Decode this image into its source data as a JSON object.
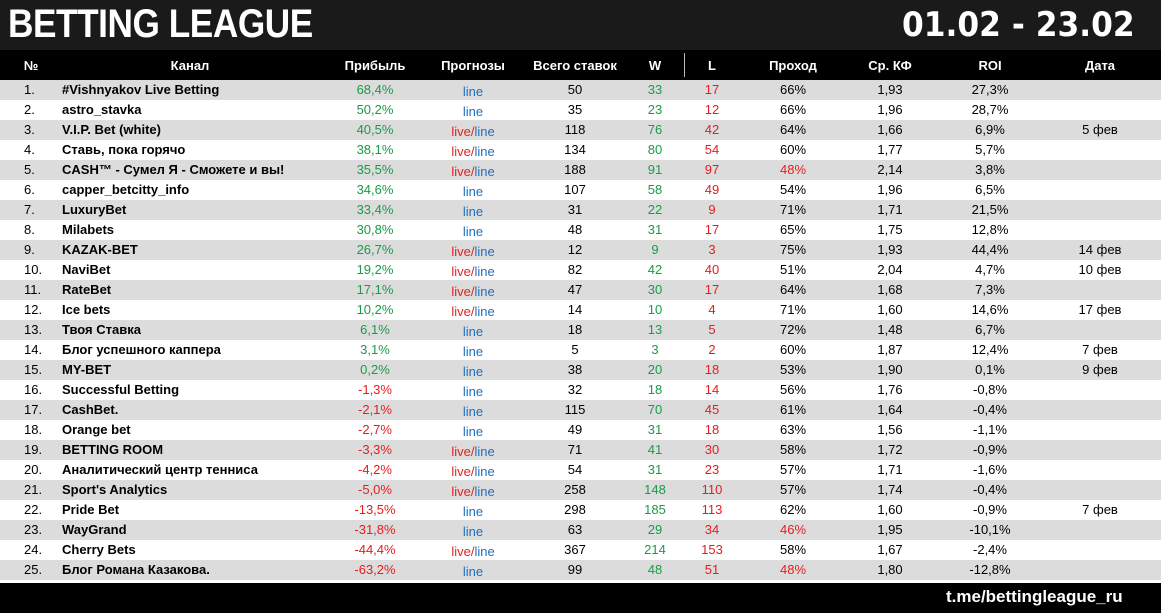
{
  "header": {
    "title": "BETTING LEAGUE",
    "dates": "01.02 - 23.02"
  },
  "columns": [
    "№",
    "Канал",
    "Прибыль",
    "Прогнозы",
    "Всего ставок",
    "W",
    "L",
    "Проход",
    "Ср. КФ",
    "ROI",
    "Дата"
  ],
  "rows": [
    {
      "num": "1.",
      "name": "#Vishnyakov Live Betting",
      "profit": "68,4%",
      "live": "",
      "line": "line",
      "total": "50",
      "w": "33",
      "l": "17",
      "pass": "66%",
      "kf": "1,93",
      "roi": "27,3%",
      "date": ""
    },
    {
      "num": "2.",
      "name": "astro_stavka",
      "profit": "50,2%",
      "live": "",
      "line": "line",
      "total": "35",
      "w": "23",
      "l": "12",
      "pass": "66%",
      "kf": "1,96",
      "roi": "28,7%",
      "date": ""
    },
    {
      "num": "3.",
      "name": "V.I.P. Bet (white)",
      "profit": "40,5%",
      "live": "live/",
      "line": "line",
      "total": "118",
      "w": "76",
      "l": "42",
      "pass": "64%",
      "kf": "1,66",
      "roi": "6,9%",
      "date": "5 фев"
    },
    {
      "num": "4.",
      "name": "Ставь, пока горячо",
      "profit": "38,1%",
      "live": "live/",
      "line": "line",
      "total": "134",
      "w": "80",
      "l": "54",
      "pass": "60%",
      "kf": "1,77",
      "roi": "5,7%",
      "date": ""
    },
    {
      "num": "5.",
      "name": "CASH™ - Сумел Я - Сможете и вы!",
      "profit": "35,5%",
      "live": "live/",
      "line": "line",
      "total": "188",
      "w": "91",
      "l": "97",
      "pass": "48%",
      "kf": "2,14",
      "roi": "3,8%",
      "date": ""
    },
    {
      "num": "6.",
      "name": "capper_betcitty_info",
      "profit": "34,6%",
      "live": "",
      "line": "line",
      "total": "107",
      "w": "58",
      "l": "49",
      "pass": "54%",
      "kf": "1,96",
      "roi": "6,5%",
      "date": ""
    },
    {
      "num": "7.",
      "name": "LuxuryBet",
      "profit": "33,4%",
      "live": "",
      "line": "line",
      "total": "31",
      "w": "22",
      "l": "9",
      "pass": "71%",
      "kf": "1,71",
      "roi": "21,5%",
      "date": ""
    },
    {
      "num": "8.",
      "name": "Milabets",
      "profit": "30,8%",
      "live": "",
      "line": "line",
      "total": "48",
      "w": "31",
      "l": "17",
      "pass": "65%",
      "kf": "1,75",
      "roi": "12,8%",
      "date": ""
    },
    {
      "num": "9.",
      "name": "KAZAK-BET",
      "profit": "26,7%",
      "live": "live/",
      "line": "line",
      "total": "12",
      "w": "9",
      "l": "3",
      "pass": "75%",
      "kf": "1,93",
      "roi": "44,4%",
      "date": "14 фев"
    },
    {
      "num": "10.",
      "name": "NaviBet",
      "profit": "19,2%",
      "live": "live/",
      "line": "line",
      "total": "82",
      "w": "42",
      "l": "40",
      "pass": "51%",
      "kf": "2,04",
      "roi": "4,7%",
      "date": "10 фев"
    },
    {
      "num": "11.",
      "name": "RateBet",
      "profit": "17,1%",
      "live": "live/",
      "line": "line",
      "total": "47",
      "w": "30",
      "l": "17",
      "pass": "64%",
      "kf": "1,68",
      "roi": "7,3%",
      "date": ""
    },
    {
      "num": "12.",
      "name": "Ice bets",
      "profit": "10,2%",
      "live": "live/",
      "line": "line",
      "total": "14",
      "w": "10",
      "l": "4",
      "pass": "71%",
      "kf": "1,60",
      "roi": "14,6%",
      "date": "17 фев"
    },
    {
      "num": "13.",
      "name": "Твоя Ставка",
      "profit": "6,1%",
      "live": "",
      "line": "line",
      "total": "18",
      "w": "13",
      "l": "5",
      "pass": "72%",
      "kf": "1,48",
      "roi": "6,7%",
      "date": ""
    },
    {
      "num": "14.",
      "name": "Блог успешного каппера",
      "profit": "3,1%",
      "live": "",
      "line": "line",
      "total": "5",
      "w": "3",
      "l": "2",
      "pass": "60%",
      "kf": "1,87",
      "roi": "12,4%",
      "date": "7 фев"
    },
    {
      "num": "15.",
      "name": "MY-BET",
      "profit": "0,2%",
      "live": "",
      "line": "line",
      "total": "38",
      "w": "20",
      "l": "18",
      "pass": "53%",
      "kf": "1,90",
      "roi": "0,1%",
      "date": "9 фев"
    },
    {
      "num": "16.",
      "name": "Successful Betting",
      "profit": "-1,3%",
      "live": "",
      "line": "line",
      "total": "32",
      "w": "18",
      "l": "14",
      "pass": "56%",
      "kf": "1,76",
      "roi": "-0,8%",
      "date": ""
    },
    {
      "num": "17.",
      "name": "CashBet.",
      "profit": "-2,1%",
      "live": "",
      "line": "line",
      "total": "115",
      "w": "70",
      "l": "45",
      "pass": "61%",
      "kf": "1,64",
      "roi": "-0,4%",
      "date": ""
    },
    {
      "num": "18.",
      "name": "Orange bet",
      "profit": "-2,7%",
      "live": "",
      "line": "line",
      "total": "49",
      "w": "31",
      "l": "18",
      "pass": "63%",
      "kf": "1,56",
      "roi": "-1,1%",
      "date": ""
    },
    {
      "num": "19.",
      "name": "BETTING ROOM",
      "profit": "-3,3%",
      "live": "live/",
      "line": "line",
      "total": "71",
      "w": "41",
      "l": "30",
      "pass": "58%",
      "kf": "1,72",
      "roi": "-0,9%",
      "date": ""
    },
    {
      "num": "20.",
      "name": "Аналитический центр тенниса",
      "profit": "-4,2%",
      "live": "live/",
      "line": "line",
      "total": "54",
      "w": "31",
      "l": "23",
      "pass": "57%",
      "kf": "1,71",
      "roi": "-1,6%",
      "date": ""
    },
    {
      "num": "21.",
      "name": "Sport's Analytics",
      "profit": "-5,0%",
      "live": "live/",
      "line": "line",
      "total": "258",
      "w": "148",
      "l": "110",
      "pass": "57%",
      "kf": "1,74",
      "roi": "-0,4%",
      "date": ""
    },
    {
      "num": "22.",
      "name": "Pride Bet",
      "profit": "-13,5%",
      "live": "",
      "line": "line",
      "total": "298",
      "w": "185",
      "l": "113",
      "pass": "62%",
      "kf": "1,60",
      "roi": "-0,9%",
      "date": "7 фев"
    },
    {
      "num": "23.",
      "name": "WayGrand",
      "profit": "-31,8%",
      "live": "",
      "line": "line",
      "total": "63",
      "w": "29",
      "l": "34",
      "pass": "46%",
      "kf": "1,95",
      "roi": "-10,1%",
      "date": ""
    },
    {
      "num": "24.",
      "name": "Cherry Bets",
      "profit": "-44,4%",
      "live": "live/",
      "line": "line",
      "total": "367",
      "w": "214",
      "l": "153",
      "pass": "58%",
      "kf": "1,67",
      "roi": "-2,4%",
      "date": ""
    },
    {
      "num": "25.",
      "name": "Блог Романа Казакова.",
      "profit": "-63,2%",
      "live": "",
      "line": "line",
      "total": "99",
      "w": "48",
      "l": "51",
      "pass": "48%",
      "kf": "1,80",
      "roi": "-12,8%",
      "date": ""
    }
  ],
  "footer": {
    "link": "t.me/bettingleague_ru"
  },
  "colors": {
    "positive": "#1a9b48",
    "negative": "#e51d1d",
    "line": "#1f6fbd",
    "header_bg": "#1a1a1a",
    "stripe": "#dcdcdc"
  }
}
